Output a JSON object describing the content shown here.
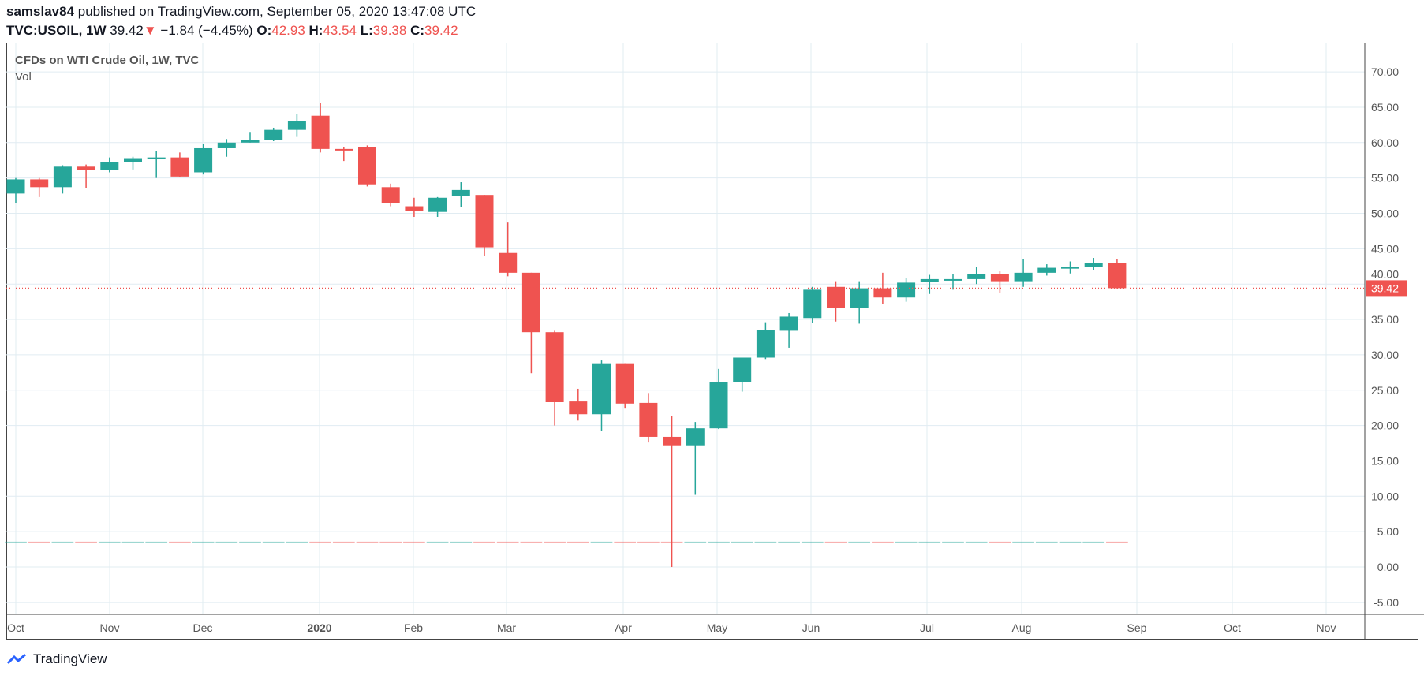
{
  "header": {
    "author": "samslav84",
    "published": "published on TradingView.com, September 05, 2020 13:47:08 UTC",
    "symbol": "TVC:USOIL, 1W",
    "last": "39.42",
    "change": "−1.84 (−4.45%)",
    "o_label": "O:",
    "o": "42.93",
    "h_label": "H:",
    "h": "43.54",
    "l_label": "L:",
    "l": "39.38",
    "c_label": "C:",
    "c": "39.42",
    "direction_icon": "triangle-down-icon"
  },
  "legend": {
    "title": "CFDs on WTI Crude Oil, 1W, TVC",
    "volume": "Vol"
  },
  "footer": {
    "logo_text": "TradingView"
  },
  "colors": {
    "up": "#26a69a",
    "down": "#ef5350",
    "grid": "#e1ecf2"
  },
  "chart_data": {
    "type": "candlestick",
    "title": "CFDs on WTI Crude Oil, 1W, TVC",
    "ylim": [
      -7,
      72
    ],
    "yticks": [
      "70.00",
      "65.00",
      "60.00",
      "55.00",
      "50.00",
      "45.00",
      "40.00",
      "35.00",
      "30.00",
      "25.00",
      "20.00",
      "15.00",
      "10.00",
      "5.00",
      "0.00",
      "-5.00"
    ],
    "xticks": [
      "Oct",
      "Nov",
      "Dec",
      "2020",
      "Feb",
      "Mar",
      "Apr",
      "May",
      "Jun",
      "Jul",
      "Aug",
      "Sep",
      "Oct",
      "Nov"
    ],
    "last_price_label": "39.42",
    "grid": true,
    "candles": [
      [
        52.8,
        55.0,
        51.5,
        54.8
      ],
      [
        54.8,
        55.0,
        52.3,
        53.7
      ],
      [
        53.7,
        56.8,
        52.8,
        56.6
      ],
      [
        56.6,
        56.9,
        53.6,
        56.1
      ],
      [
        56.1,
        57.9,
        55.8,
        57.3
      ],
      [
        57.3,
        58.0,
        56.2,
        57.8
      ],
      [
        57.7,
        58.8,
        55.0,
        57.9
      ],
      [
        57.9,
        58.6,
        55.1,
        55.2
      ],
      [
        55.8,
        59.8,
        55.5,
        59.2
      ],
      [
        59.2,
        60.5,
        58.0,
        60.0
      ],
      [
        60.0,
        61.4,
        60.0,
        60.4
      ],
      [
        60.4,
        62.1,
        60.2,
        61.8
      ],
      [
        61.8,
        64.1,
        60.8,
        63.0
      ],
      [
        63.8,
        65.6,
        58.6,
        59.1
      ],
      [
        59.1,
        59.4,
        57.4,
        58.9
      ],
      [
        59.4,
        59.6,
        53.8,
        54.1
      ],
      [
        53.7,
        54.2,
        51.0,
        51.5
      ],
      [
        51.0,
        52.2,
        49.5,
        50.3
      ],
      [
        50.2,
        52.3,
        49.5,
        52.2
      ],
      [
        52.5,
        54.4,
        50.9,
        53.3
      ],
      [
        52.6,
        52.6,
        44.0,
        45.2
      ],
      [
        44.4,
        48.7,
        41.1,
        41.6
      ],
      [
        41.6,
        41.6,
        27.4,
        33.2
      ],
      [
        33.2,
        33.4,
        20.0,
        23.3
      ],
      [
        23.4,
        25.2,
        20.7,
        21.6
      ],
      [
        21.6,
        29.2,
        19.2,
        28.8
      ],
      [
        28.8,
        28.8,
        22.5,
        23.1
      ],
      [
        23.2,
        24.6,
        17.6,
        18.4
      ],
      [
        18.4,
        21.4,
        0.0,
        17.2
      ],
      [
        17.2,
        20.5,
        10.2,
        19.6
      ],
      [
        19.6,
        28.0,
        19.5,
        26.1
      ],
      [
        26.1,
        29.6,
        24.8,
        29.6
      ],
      [
        29.6,
        34.6,
        29.4,
        33.5
      ],
      [
        33.4,
        35.9,
        31.0,
        35.4
      ],
      [
        35.2,
        39.6,
        34.5,
        39.2
      ],
      [
        39.6,
        40.4,
        34.7,
        36.6
      ],
      [
        36.6,
        40.4,
        34.4,
        39.4
      ],
      [
        39.4,
        41.6,
        37.2,
        38.1
      ],
      [
        38.1,
        40.8,
        37.5,
        40.2
      ],
      [
        40.3,
        41.3,
        38.6,
        40.7
      ],
      [
        40.6,
        41.4,
        39.2,
        40.7
      ],
      [
        40.7,
        42.4,
        40.0,
        41.4
      ],
      [
        41.4,
        41.8,
        38.8,
        40.4
      ],
      [
        40.4,
        43.5,
        39.6,
        41.6
      ],
      [
        41.6,
        42.8,
        41.2,
        42.3
      ],
      [
        42.3,
        43.2,
        41.5,
        42.4
      ],
      [
        42.4,
        43.7,
        42.0,
        43.0
      ],
      [
        42.93,
        43.54,
        39.38,
        39.42
      ]
    ],
    "candle_fields": [
      "open",
      "high",
      "low",
      "close"
    ],
    "volume_level": 3.5
  }
}
